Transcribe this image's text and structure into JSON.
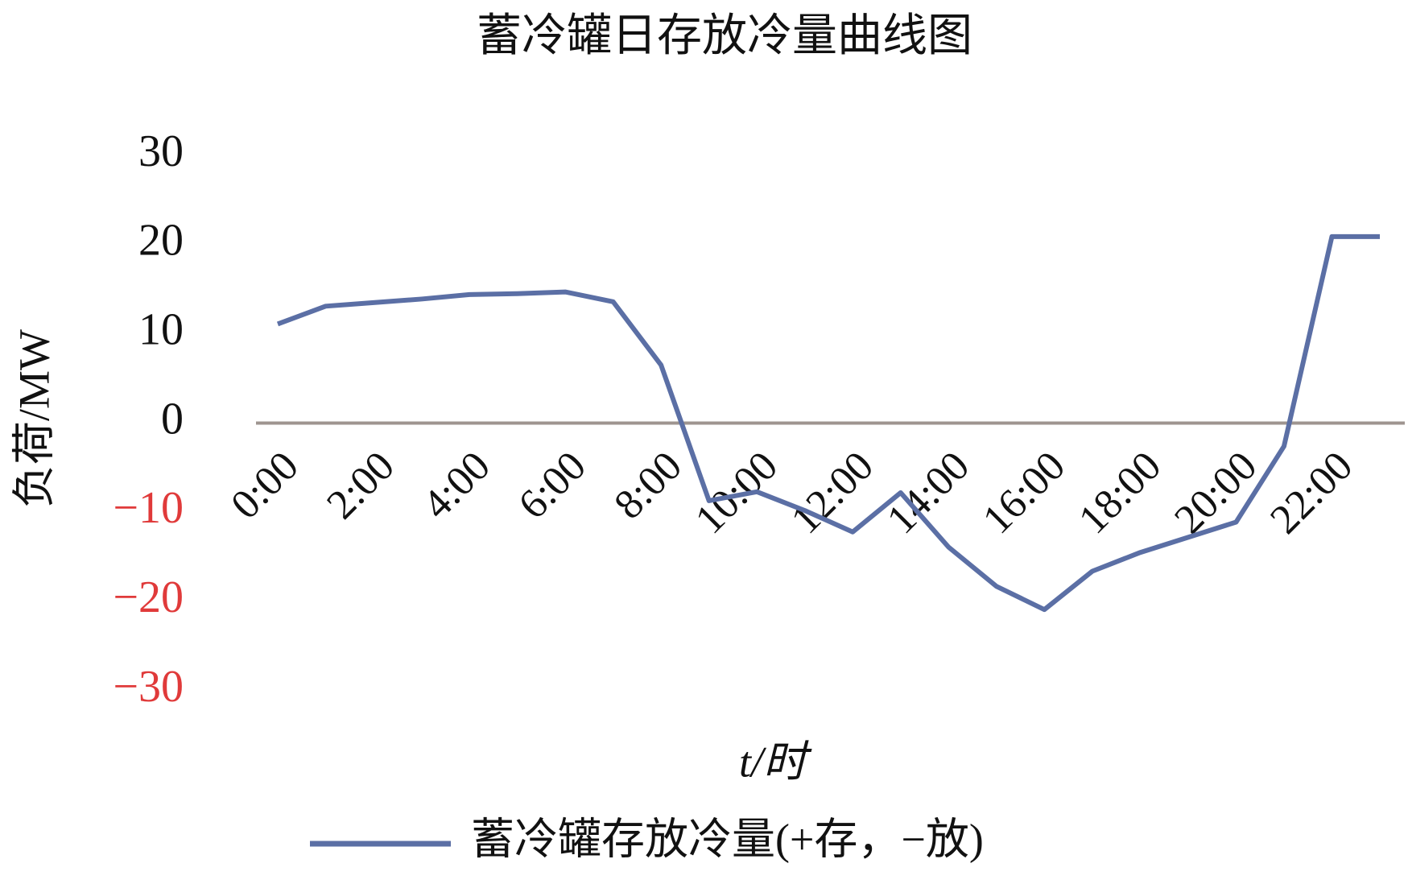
{
  "chart_data": {
    "type": "line",
    "title": "蓄冷罐日存放冷量曲线图",
    "x_label": "t/时",
    "y_label": "负荷/MW",
    "categories": [
      "0:00",
      null,
      "2:00",
      null,
      "4:00",
      null,
      "6:00",
      null,
      "8:00",
      null,
      "10:00",
      null,
      "12:00",
      null,
      "14:00",
      null,
      "16:00",
      null,
      "18:00",
      null,
      "20:00",
      null,
      "22:00",
      null
    ],
    "series": [
      {
        "name": "蓄冷罐存放冷量(+存，−放)",
        "color": "#5b6fa5",
        "values": [
          11.1,
          13.1,
          13.5,
          13.9,
          14.4,
          14.5,
          14.7,
          13.6,
          6.5,
          -8.7,
          -7.7,
          -9.8,
          -12.2,
          -7.8,
          -13.9,
          -18.3,
          -20.9,
          -16.6,
          -14.5,
          -12.8,
          -11.1,
          -2.6,
          20.9,
          20.9
        ]
      }
    ],
    "ylim": [
      -30,
      30
    ],
    "yticks": [
      30,
      20,
      10,
      0,
      {
        "value": -10,
        "label": "−10"
      },
      {
        "value": -20,
        "label": "−20"
      },
      {
        "value": -30,
        "label": "−30"
      }
    ],
    "negative_tick_color": "#e03a3a",
    "zero_line_color": "#9e9590",
    "grid": false,
    "legend": "bottom"
  }
}
